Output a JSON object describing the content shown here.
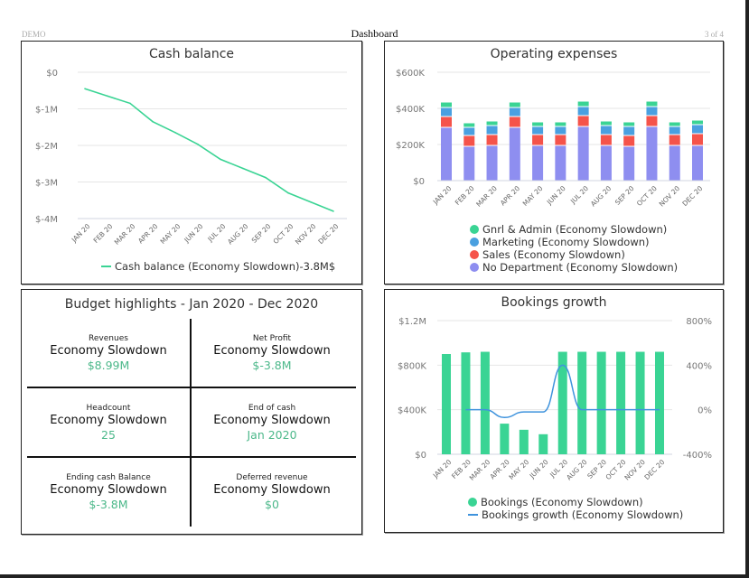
{
  "header": {
    "left": "DEMO",
    "title": "Dashboard",
    "page": "3 of 4"
  },
  "colors": {
    "green": "#3ad494",
    "blue": "#4aa0e0",
    "red": "#f5534a",
    "purple": "#8e8ef0",
    "line_blue": "#3f93dd",
    "value_green": "#4cb88a"
  },
  "months": [
    "JAN 20",
    "FEB 20",
    "MAR 20",
    "APR 20",
    "MAY 20",
    "JUN 20",
    "JUL 20",
    "AUG 20",
    "SEP 20",
    "OCT 20",
    "NOV 20",
    "DEC 20"
  ],
  "chart_data": [
    {
      "id": "cash-balance",
      "type": "line",
      "title": "Cash balance",
      "categories": [
        "JAN 20",
        "FEB 20",
        "MAR 20",
        "APR 20",
        "MAY 20",
        "JUN 20",
        "JUL 20",
        "AUG 20",
        "SEP 20",
        "OCT 20",
        "NOV 20",
        "DEC 20"
      ],
      "series": [
        {
          "name": "Cash balance (Economy Slowdown)-3.8M$",
          "values": [
            -0.45,
            -0.65,
            -0.85,
            -1.35,
            -1.65,
            -1.97,
            -2.38,
            -2.63,
            -2.88,
            -3.3,
            -3.55,
            -3.8
          ]
        }
      ],
      "yunit": "M",
      "ylim": [
        -4,
        0
      ],
      "yticks": [
        "$0",
        "$-1M",
        "$-2M",
        "$-3M",
        "$-4M"
      ],
      "grid": true,
      "legend": "bottom"
    },
    {
      "id": "operating-expenses",
      "type": "bar",
      "stacked": true,
      "title": "Operating expenses",
      "categories": [
        "JAN 20",
        "FEB 20",
        "MAR 20",
        "APR 20",
        "MAY 20",
        "JUN 20",
        "JUL 20",
        "AUG 20",
        "SEP 20",
        "OCT 20",
        "NOV 20",
        "DEC 20"
      ],
      "series": [
        {
          "name": "No Department (Economy Slowdown)",
          "color": "#8e8ef0",
          "values": [
            295,
            190,
            195,
            295,
            195,
            195,
            300,
            195,
            190,
            300,
            195,
            195
          ]
        },
        {
          "name": "Sales (Economy Slowdown)",
          "color": "#f5534a",
          "values": [
            60,
            60,
            60,
            60,
            60,
            60,
            60,
            60,
            60,
            60,
            60,
            65
          ]
        },
        {
          "name": "Marketing (Economy Slowdown)",
          "color": "#4aa0e0",
          "values": [
            50,
            45,
            50,
            50,
            45,
            45,
            50,
            50,
            50,
            50,
            45,
            50
          ]
        },
        {
          "name": "Gnrl & Admin (Economy Slowdown)",
          "color": "#3ad494",
          "values": [
            30,
            25,
            25,
            30,
            25,
            25,
            30,
            25,
            25,
            30,
            25,
            25
          ]
        }
      ],
      "legend_order": [
        "Gnrl & Admin (Economy Slowdown)",
        "Marketing (Economy Slowdown)",
        "Sales (Economy Slowdown)",
        "No Department (Economy Slowdown)"
      ],
      "yunit": "K",
      "ylim": [
        0,
        600
      ],
      "yticks": [
        "$0",
        "$200K",
        "$400K",
        "$600K"
      ],
      "grid": true,
      "legend": "bottom"
    },
    {
      "id": "bookings-growth",
      "type": "bar",
      "title": "Bookings growth",
      "categories": [
        "JAN 20",
        "FEB 20",
        "MAR 20",
        "APR 20",
        "MAY 20",
        "JUN 20",
        "JUL 20",
        "AUG 20",
        "SEP 20",
        "OCT 20",
        "NOV 20",
        "DEC 20"
      ],
      "series": [
        {
          "name": "Bookings (Economy Slowdown)",
          "type": "bar",
          "axis": "left",
          "color": "#3ad494",
          "values": [
            900,
            915,
            920,
            275,
            220,
            180,
            920,
            920,
            920,
            920,
            920,
            920
          ]
        },
        {
          "name": "Bookings growth (Economy Slowdown)",
          "type": "line",
          "axis": "right",
          "color": "#3f93dd",
          "values": [
            null,
            0,
            0,
            -70,
            -20,
            -20,
            400,
            0,
            0,
            0,
            0,
            0
          ]
        }
      ],
      "ylim_left": [
        0,
        1200
      ],
      "yticks_left": [
        "$0",
        "$400K",
        "$800K",
        "$1.2M"
      ],
      "ylim_right": [
        -400,
        800
      ],
      "yticks_right": [
        "-400%",
        "0%",
        "400%",
        "800%"
      ],
      "grid": true,
      "legend": "bottom"
    }
  ],
  "highlights": {
    "title": "Budget highlights - Jan 2020 - Dec 2020",
    "cells": [
      {
        "label": "Revenues",
        "scenario": "Economy Slowdown",
        "value": "$8.99M"
      },
      {
        "label": "Net Profit",
        "scenario": "Economy Slowdown",
        "value": "$-3.8M"
      },
      {
        "label": "Headcount",
        "scenario": "Economy Slowdown",
        "value": "25"
      },
      {
        "label": "End of cash",
        "scenario": "Economy Slowdown",
        "value": "Jan 2020"
      },
      {
        "label": "Ending cash Balance",
        "scenario": "Economy Slowdown",
        "value": "$-3.8M"
      },
      {
        "label": "Deferred revenue",
        "scenario": "Economy Slowdown",
        "value": "$0"
      }
    ]
  }
}
